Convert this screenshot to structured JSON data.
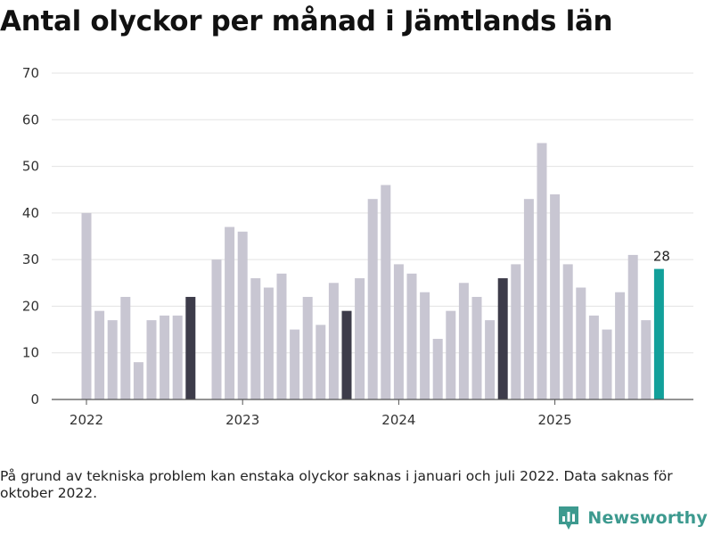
{
  "title": "Antal olyckor per månad i Jämtlands län",
  "note": "På grund av tekniska problem kan enstaka olyckor saknas i januari och juli 2022. Data saknas för oktober 2022.",
  "brand": {
    "name": "Newsworthy",
    "icon": "newsworthy-logo-icon"
  },
  "colors": {
    "default": "#c8c6d2",
    "september": "#3d3c4a",
    "latest": "#12a09a",
    "grid": "#e3e3e3",
    "axis": "#555555",
    "text": "#333333"
  },
  "chart_data": {
    "type": "bar",
    "title": "Antal olyckor per månad i Jämtlands län",
    "xlabel": "",
    "ylabel": "",
    "ylim": [
      0,
      70
    ],
    "yticks": [
      0,
      10,
      20,
      30,
      40,
      50,
      60,
      70
    ],
    "year_labels": [
      {
        "label": "2022",
        "month_index": 0
      },
      {
        "label": "2023",
        "month_index": 12
      },
      {
        "label": "2024",
        "month_index": 24
      },
      {
        "label": "2025",
        "month_index": 36
      }
    ],
    "months": [
      "2022-01",
      "2022-02",
      "2022-03",
      "2022-04",
      "2022-05",
      "2022-06",
      "2022-07",
      "2022-08",
      "2022-09",
      "2022-10",
      "2022-11",
      "2022-12",
      "2023-01",
      "2023-02",
      "2023-03",
      "2023-04",
      "2023-05",
      "2023-06",
      "2023-07",
      "2023-08",
      "2023-09",
      "2023-10",
      "2023-11",
      "2023-12",
      "2024-01",
      "2024-02",
      "2024-03",
      "2024-04",
      "2024-05",
      "2024-06",
      "2024-07",
      "2024-08",
      "2024-09",
      "2024-10",
      "2024-11",
      "2024-12",
      "2025-01",
      "2025-02",
      "2025-03",
      "2025-04",
      "2025-05",
      "2025-06",
      "2025-07",
      "2025-08",
      "2025-09"
    ],
    "values": [
      40,
      19,
      17,
      22,
      8,
      17,
      18,
      18,
      22,
      null,
      30,
      37,
      36,
      26,
      24,
      27,
      15,
      22,
      16,
      25,
      19,
      26,
      43,
      46,
      29,
      27,
      23,
      13,
      19,
      25,
      22,
      17,
      26,
      29,
      43,
      55,
      44,
      29,
      24,
      18,
      15,
      23,
      31,
      17,
      28
    ],
    "highlight_september": [
      8,
      20,
      32
    ],
    "latest_index": 44,
    "data_labels": [
      {
        "index": 44,
        "text": "28"
      }
    ]
  }
}
